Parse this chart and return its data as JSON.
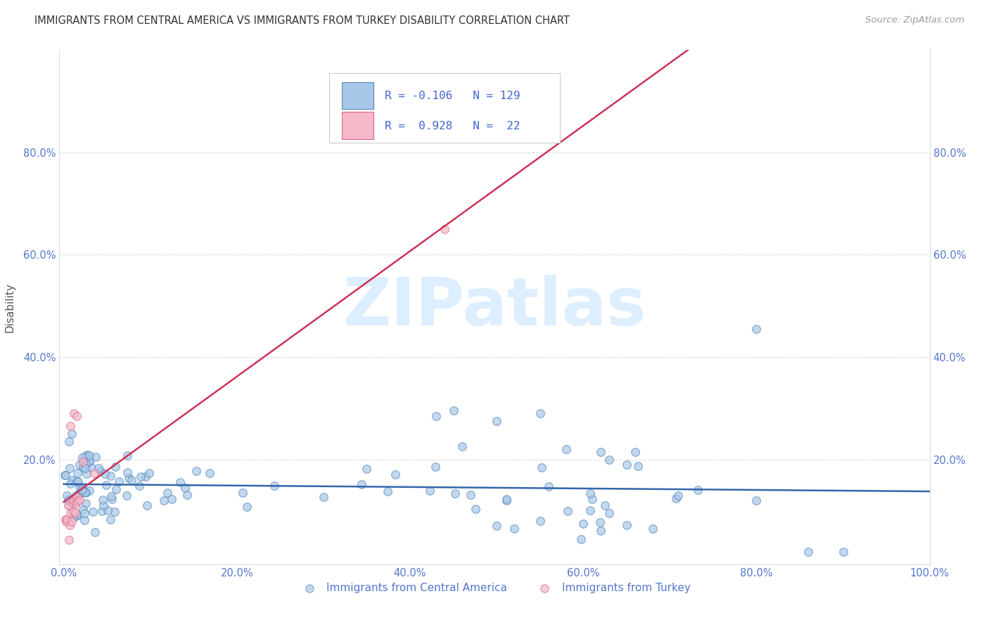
{
  "title": "IMMIGRANTS FROM CENTRAL AMERICA VS IMMIGRANTS FROM TURKEY DISABILITY CORRELATION CHART",
  "source": "Source: ZipAtlas.com",
  "ylabel": "Disability",
  "legend_labels": [
    "Immigrants from Central America",
    "Immigrants from Turkey"
  ],
  "r_central_america": -0.106,
  "n_central_america": 129,
  "r_turkey": 0.928,
  "n_turkey": 22,
  "blue_color": "#a8c8e8",
  "pink_color": "#f4b8c8",
  "blue_edge_color": "#5588bb",
  "pink_edge_color": "#dd6688",
  "blue_line_color": "#3366aa",
  "pink_line_color": "#cc3355",
  "watermark_color": "#ddeeff",
  "watermark_text": "ZIPatlas",
  "tick_color": "#5577cc",
  "title_color": "#333333",
  "source_color": "#999999",
  "grid_color": "#dddddd",
  "legend_text_color": "#4466cc"
}
